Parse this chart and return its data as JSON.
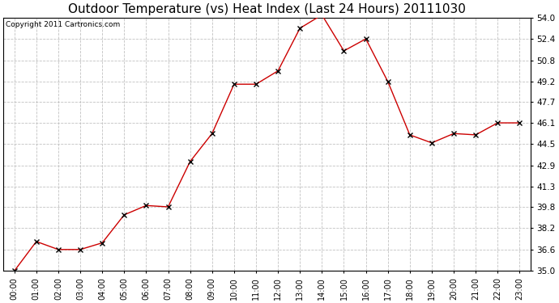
{
  "title": "Outdoor Temperature (vs) Heat Index (Last 24 Hours) 20111030",
  "copyright": "Copyright 2011 Cartronics.com",
  "x_labels": [
    "00:00",
    "01:00",
    "02:00",
    "03:00",
    "04:00",
    "05:00",
    "06:00",
    "07:00",
    "08:00",
    "09:00",
    "10:00",
    "11:00",
    "12:00",
    "13:00",
    "14:00",
    "15:00",
    "16:00",
    "17:00",
    "18:00",
    "19:00",
    "20:00",
    "21:00",
    "22:00",
    "23:00"
  ],
  "y_values": [
    35.0,
    37.2,
    36.6,
    36.6,
    37.1,
    39.2,
    39.9,
    39.8,
    43.2,
    45.3,
    49.0,
    49.0,
    50.0,
    53.2,
    54.2,
    51.5,
    52.4,
    49.2,
    45.2,
    44.6,
    45.3,
    45.2,
    46.1,
    46.1
  ],
  "line_color": "#cc0000",
  "marker": "x",
  "marker_color": "#000000",
  "marker_size": 4,
  "ylim_min": 35.0,
  "ylim_max": 54.0,
  "yticks": [
    35.0,
    36.6,
    38.2,
    39.8,
    41.3,
    42.9,
    44.5,
    46.1,
    47.7,
    49.2,
    50.8,
    52.4,
    54.0
  ],
  "background_color": "#ffffff",
  "grid_color": "#bbbbbb",
  "title_fontsize": 11,
  "tick_fontsize": 7,
  "copyright_fontsize": 6.5
}
